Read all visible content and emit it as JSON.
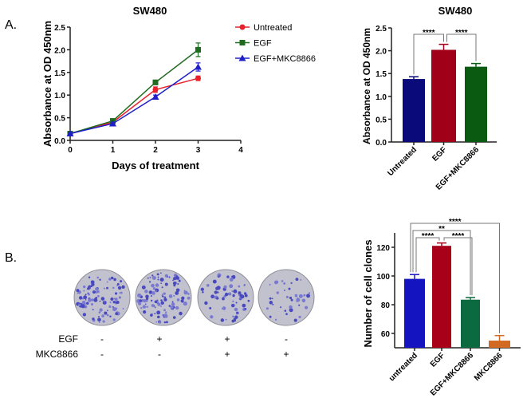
{
  "panel_labels": {
    "a": "A.",
    "b": "B."
  },
  "chart_data": [
    {
      "type": "line",
      "title": "SW480",
      "xlabel": "Days of treatment",
      "ylabel": "Absorbance at OD 450nm",
      "xlim": [
        0,
        4
      ],
      "ylim": [
        0,
        2.5
      ],
      "xticks": [
        "0",
        "1",
        "2",
        "3",
        "4"
      ],
      "yticks": [
        "0.0",
        "0.5",
        "1.0",
        "1.5",
        "2.0",
        "2.5"
      ],
      "x": [
        0,
        1,
        2,
        3
      ],
      "legend": "top-right",
      "series": [
        {
          "name": "Untreated",
          "color": "#e8202a",
          "marker": "circle",
          "values": [
            0.15,
            0.4,
            1.12,
            1.37
          ],
          "errors": [
            0.02,
            0.03,
            0.06,
            0.05
          ]
        },
        {
          "name": "EGF",
          "color": "#1f6b1f",
          "marker": "square",
          "values": [
            0.15,
            0.43,
            1.28,
            2.0
          ],
          "errors": [
            0.02,
            0.03,
            0.05,
            0.15
          ]
        },
        {
          "name": "EGF+MKC8866",
          "color": "#1f1fc8",
          "marker": "triangle",
          "values": [
            0.15,
            0.37,
            0.96,
            1.62
          ],
          "errors": [
            0.02,
            0.03,
            0.04,
            0.09
          ]
        }
      ]
    },
    {
      "type": "bar",
      "title": "SW480",
      "ylabel": "Absorbance at OD 450nm",
      "ylim": [
        0,
        2.5
      ],
      "yticks": [
        "0.0",
        "0.5",
        "1.0",
        "1.5",
        "2.0",
        "2.5"
      ],
      "categories": [
        "Untreated",
        "EGF",
        "EGF+MKC8866"
      ],
      "values": [
        1.38,
        2.02,
        1.65
      ],
      "errors": [
        0.05,
        0.12,
        0.07
      ],
      "colors": [
        "#0a0a7a",
        "#a00018",
        "#0b5a12"
      ],
      "significance": [
        {
          "from": 0,
          "to": 1,
          "label": "****"
        },
        {
          "from": 1,
          "to": 2,
          "label": "****"
        }
      ]
    },
    {
      "type": "bar",
      "ylabel": "Number of cell clones",
      "ylim": [
        50,
        130
      ],
      "yticks": [
        "60",
        "80",
        "100",
        "120"
      ],
      "categories": [
        "untreated",
        "EGF",
        "EGF+MKC8866",
        "MKC8866"
      ],
      "values": [
        98,
        121,
        83.5,
        55
      ],
      "errors": [
        3,
        2,
        1.5,
        3.5
      ],
      "colors": [
        "#1414c0",
        "#a80018",
        "#0b6a40",
        "#d26a24"
      ],
      "significance": [
        {
          "from": 0,
          "to": 3,
          "label": "****"
        },
        {
          "from": 0,
          "to": 2,
          "label": "**"
        },
        {
          "from": 0,
          "to": 1,
          "label": "****"
        },
        {
          "from": 1,
          "to": 2,
          "label": "****"
        }
      ]
    }
  ],
  "colony_assay": {
    "rows": [
      {
        "label": "EGF",
        "values": [
          "-",
          "+",
          "+",
          "-"
        ]
      },
      {
        "label": "MKC8866",
        "values": [
          "-",
          "-",
          "+",
          "+"
        ]
      }
    ],
    "dish_density": [
      0.9,
      1.0,
      0.6,
      0.35
    ]
  }
}
